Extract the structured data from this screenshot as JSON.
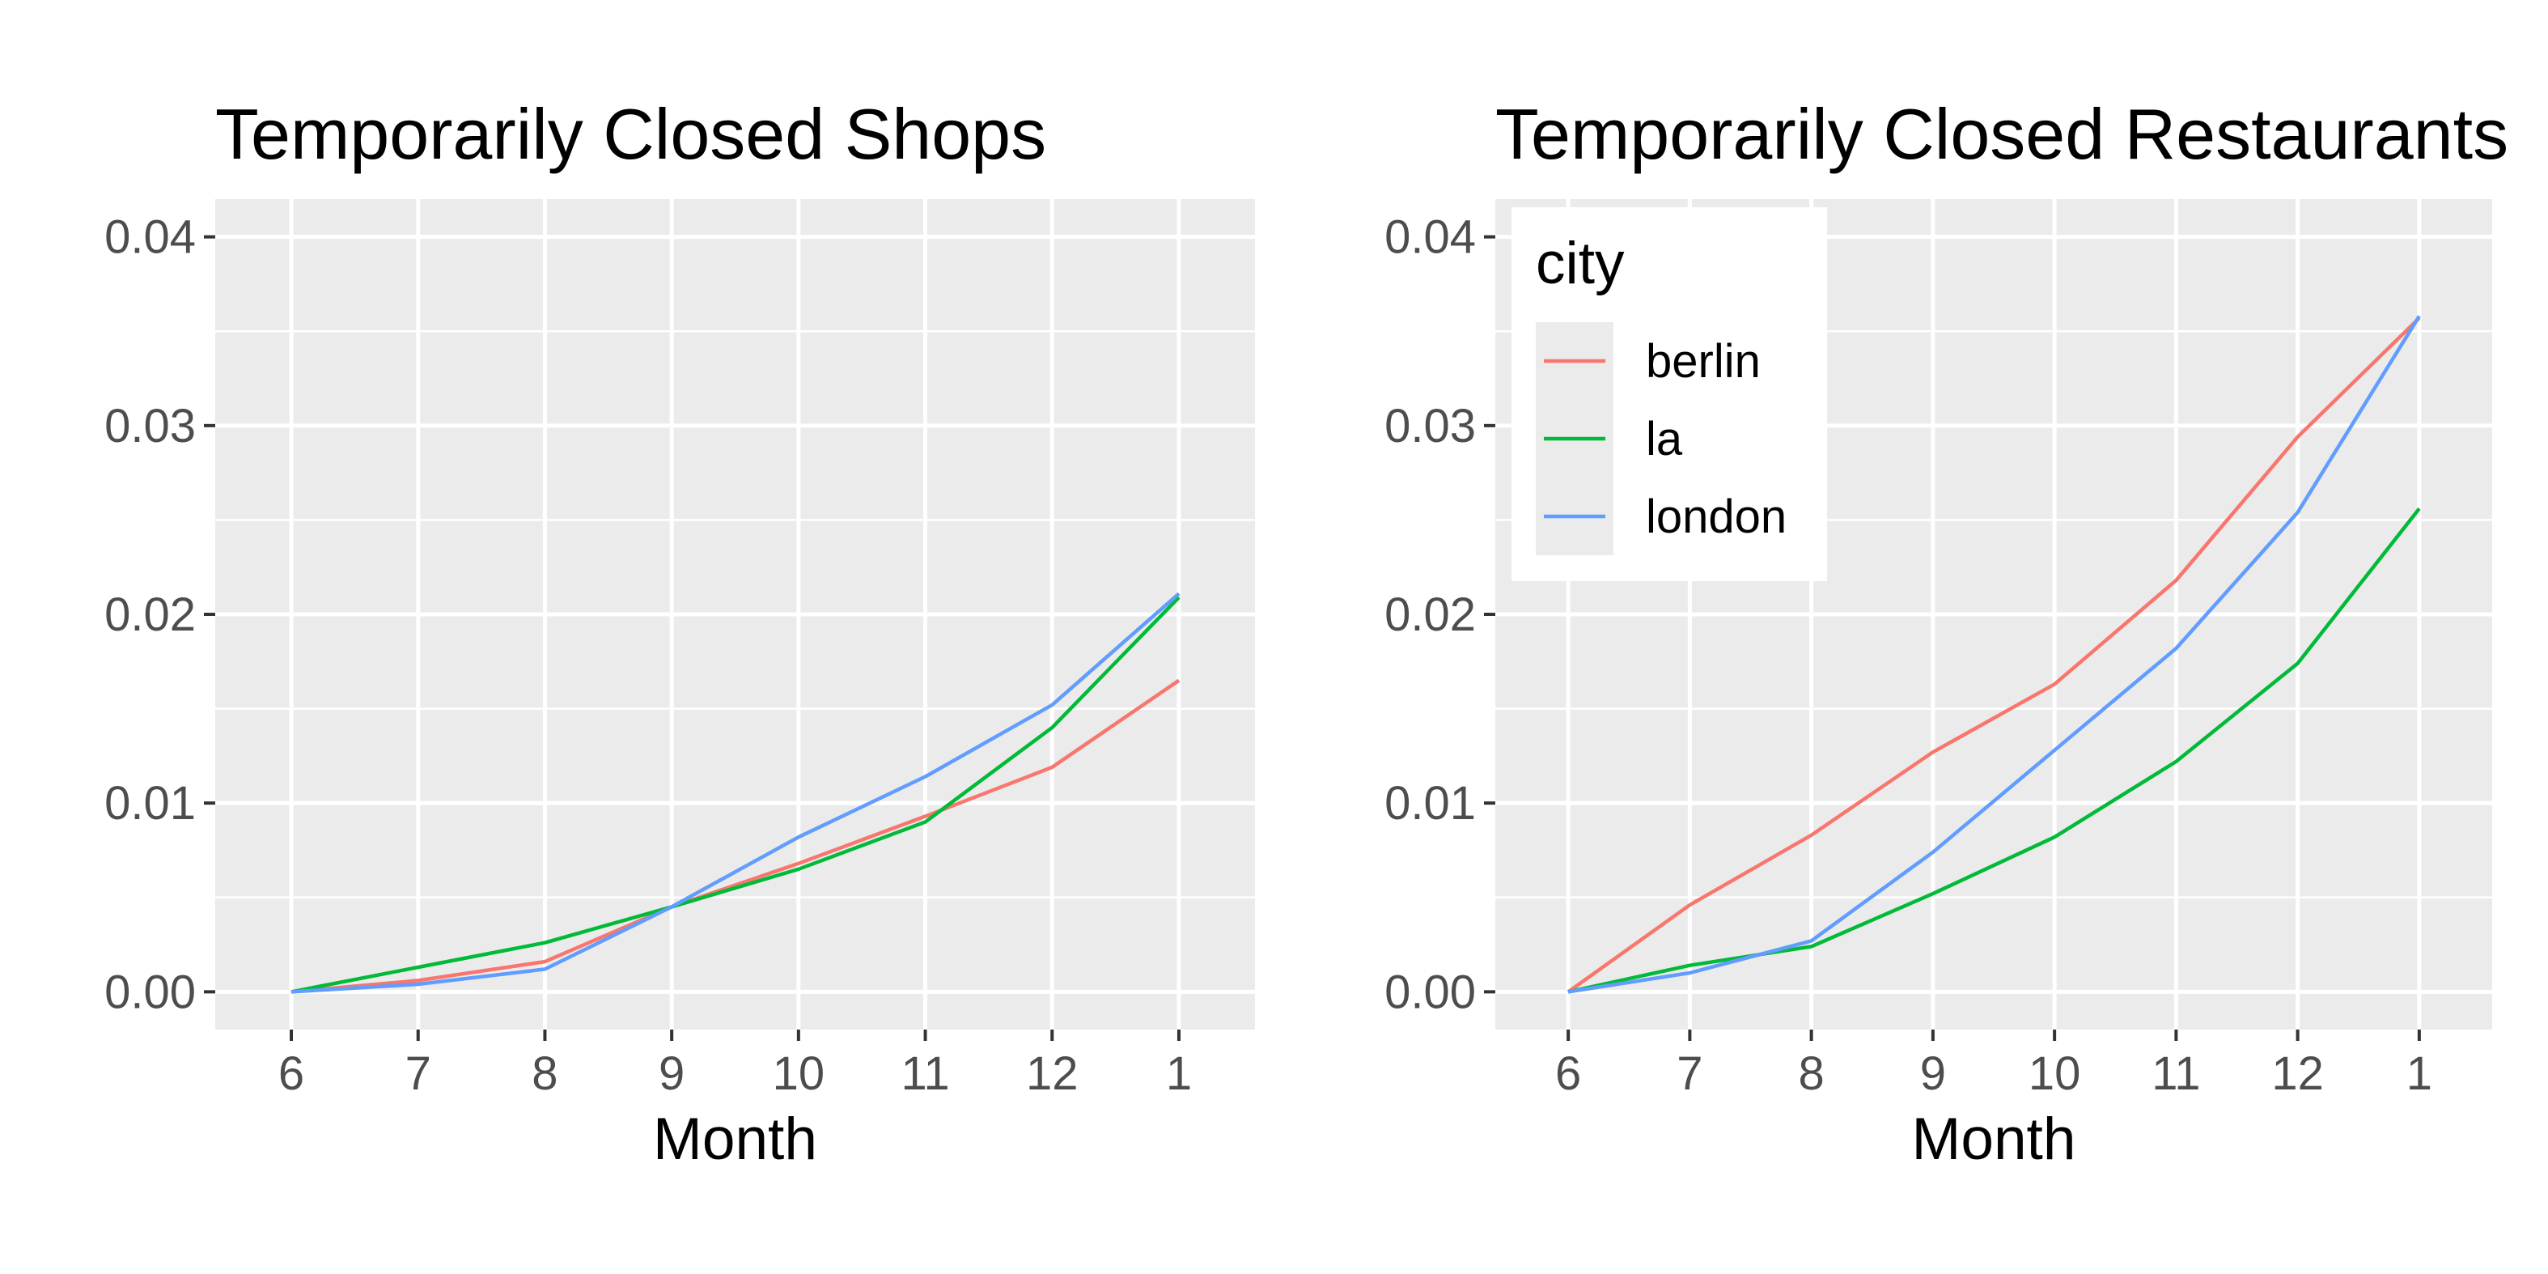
{
  "chart_data": [
    {
      "type": "line",
      "title": "Temporarily Closed Shops",
      "xlabel": "Month",
      "ylabel": "",
      "categories": [
        "6",
        "7",
        "8",
        "9",
        "10",
        "11",
        "12",
        "1"
      ],
      "ylim": [
        -0.002,
        0.042
      ],
      "yticks": [
        "0.00",
        "0.01",
        "0.02",
        "0.03",
        "0.04"
      ],
      "ytick_values": [
        0,
        0.01,
        0.02,
        0.03,
        0.04
      ],
      "grid": true,
      "series": [
        {
          "name": "berlin",
          "values": [
            0.0,
            0.0006,
            0.0016,
            0.0045,
            0.0068,
            0.0093,
            0.0119,
            0.0165
          ]
        },
        {
          "name": "la",
          "values": [
            0.0,
            0.0013,
            0.0026,
            0.0045,
            0.0065,
            0.009,
            0.014,
            0.0209
          ]
        },
        {
          "name": "london",
          "values": [
            0.0,
            0.0004,
            0.0012,
            0.0045,
            0.0082,
            0.0114,
            0.0152,
            0.0211
          ]
        }
      ]
    },
    {
      "type": "line",
      "title": "Temporarily Closed Restaurants",
      "xlabel": "Month",
      "ylabel": "",
      "categories": [
        "6",
        "7",
        "8",
        "9",
        "10",
        "11",
        "12",
        "1"
      ],
      "ylim": [
        -0.002,
        0.042
      ],
      "yticks": [
        "0.00",
        "0.01",
        "0.02",
        "0.03",
        "0.04"
      ],
      "ytick_values": [
        0,
        0.01,
        0.02,
        0.03,
        0.04
      ],
      "grid": true,
      "series": [
        {
          "name": "berlin",
          "values": [
            0.0,
            0.0046,
            0.0083,
            0.0127,
            0.0163,
            0.0218,
            0.0294,
            0.0357
          ]
        },
        {
          "name": "la",
          "values": [
            0.0,
            0.0014,
            0.0024,
            0.0052,
            0.0082,
            0.0122,
            0.0174,
            0.0256
          ]
        },
        {
          "name": "london",
          "values": [
            0.0,
            0.001,
            0.0027,
            0.0074,
            0.0128,
            0.0182,
            0.0254,
            0.0358
          ]
        }
      ]
    }
  ],
  "legend": {
    "title": "city",
    "position": "top-left of second panel",
    "items": [
      {
        "label": "berlin",
        "color": "#F8766D"
      },
      {
        "label": "la",
        "color": "#00BA38"
      },
      {
        "label": "london",
        "color": "#619CFF"
      }
    ]
  },
  "colors": {
    "berlin": "#F8766D",
    "la": "#00BA38",
    "london": "#619CFF",
    "panel_background": "#EBEBEB",
    "grid": "#FFFFFF"
  }
}
